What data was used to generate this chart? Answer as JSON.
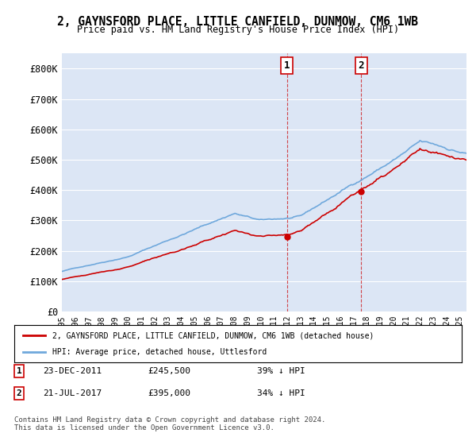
{
  "title": "2, GAYNSFORD PLACE, LITTLE CANFIELD, DUNMOW, CM6 1WB",
  "subtitle": "Price paid vs. HM Land Registry's House Price Index (HPI)",
  "background_color": "#ffffff",
  "plot_bg_color": "#dce6f5",
  "ylim": [
    0,
    850000
  ],
  "yticks": [
    0,
    100000,
    200000,
    300000,
    400000,
    500000,
    600000,
    700000,
    800000
  ],
  "ytick_labels": [
    "£0",
    "£100K",
    "£200K",
    "£300K",
    "£400K",
    "£500K",
    "£600K",
    "£700K",
    "£800K"
  ],
  "xmin": 1995.0,
  "xmax": 2025.5,
  "sale1_x": 2011.98,
  "sale1_y": 245500,
  "sale1_label": "1",
  "sale2_x": 2017.55,
  "sale2_y": 395000,
  "sale2_label": "2",
  "legend_line1": "2, GAYNSFORD PLACE, LITTLE CANFIELD, DUNMOW, CM6 1WB (detached house)",
  "legend_line2": "HPI: Average price, detached house, Uttlesford",
  "footer": "Contains HM Land Registry data © Crown copyright and database right 2024.\nThis data is licensed under the Open Government Licence v3.0.",
  "hpi_color": "#6fa8dc",
  "price_color": "#cc0000",
  "marker_color": "#cc0000"
}
